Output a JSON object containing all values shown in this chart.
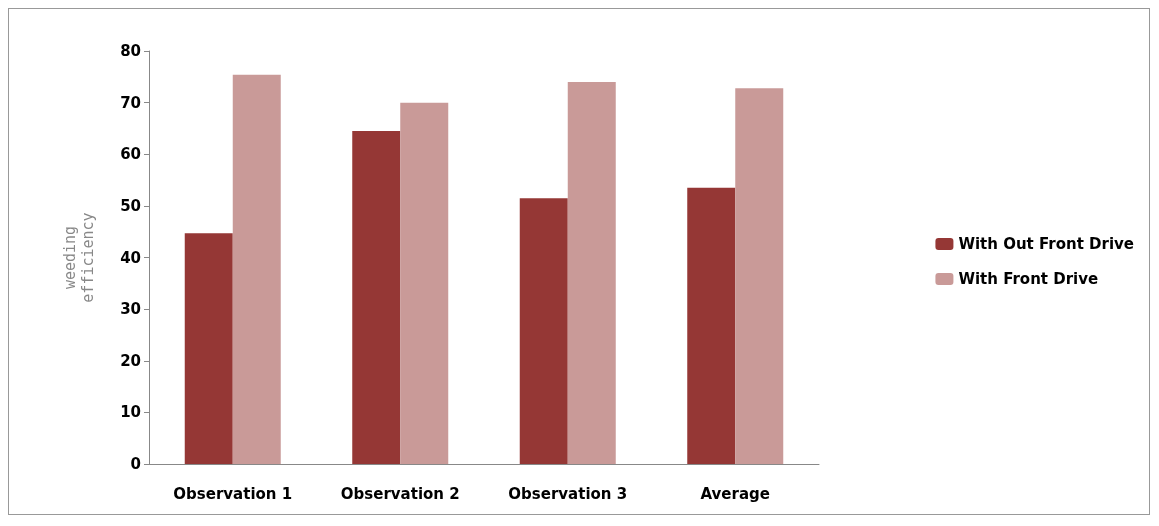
{
  "chart_data": {
    "type": "bar",
    "ylabel": "weeding\nefficiency",
    "categories": [
      "Observation 1",
      "Observation 2",
      "Observation 3",
      "Average"
    ],
    "series": [
      {
        "name": "With Out Front Drive",
        "color": "#953735",
        "values": [
          44.7,
          64.5,
          51.5,
          53.5
        ]
      },
      {
        "name": "With Front Drive",
        "color": "#c99a98",
        "values": [
          75.4,
          70,
          74,
          72.8
        ]
      }
    ],
    "ylim": [
      0,
      80
    ],
    "yticks": [
      0,
      10,
      20,
      30,
      40,
      50,
      60,
      70,
      80
    ],
    "grid": false,
    "legend": "right"
  }
}
